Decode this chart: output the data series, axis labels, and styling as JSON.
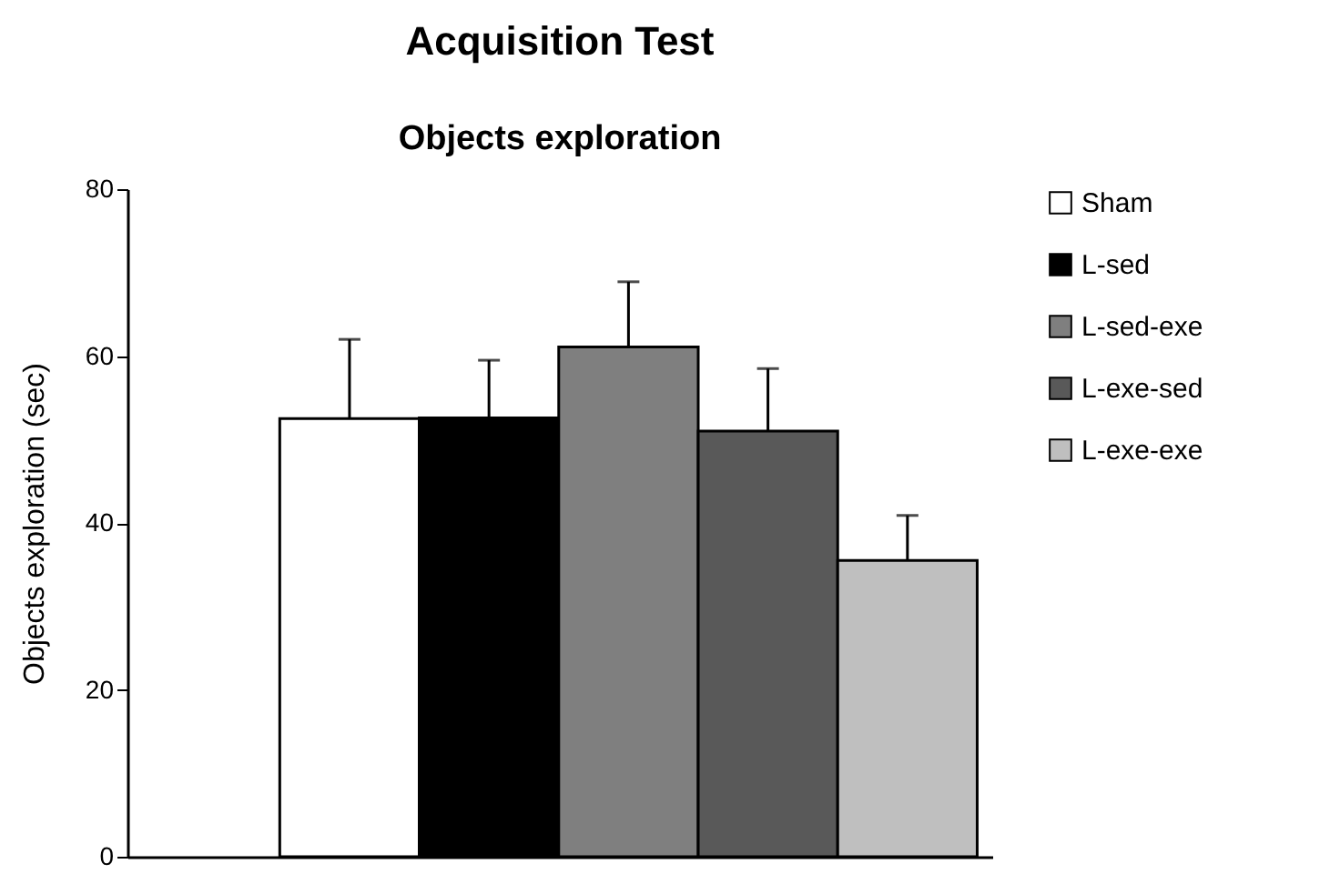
{
  "chart_data": {
    "type": "bar",
    "title": "Acquisition Test",
    "subtitle": "Objects exploration",
    "ylabel": "Objects exploration (sec)",
    "categories": [
      null
    ],
    "series": [
      {
        "name": "Sham",
        "color": "#ffffff",
        "values": [
          52.5
        ],
        "errors": [
          [
            52.5,
            62.0
          ]
        ]
      },
      {
        "name": "L-sed",
        "color": "#000000",
        "values": [
          52.6
        ],
        "errors": [
          [
            52.6,
            59.5
          ]
        ]
      },
      {
        "name": "L-sed-exe",
        "color": "#7f7f7f",
        "values": [
          61.1
        ],
        "errors": [
          [
            61.1,
            68.9
          ]
        ]
      },
      {
        "name": "L-exe-sed",
        "color": "#595959",
        "values": [
          51.0
        ],
        "errors": [
          [
            51.0,
            58.5
          ]
        ]
      },
      {
        "name": "L-exe-exe",
        "color": "#bfbfbf",
        "values": [
          35.5
        ],
        "errors": [
          [
            35.5,
            40.9
          ]
        ]
      }
    ],
    "ylim": [
      0,
      80
    ],
    "yticks": [
      0,
      20,
      40,
      60,
      80
    ],
    "grid": false,
    "legend": "right",
    "tick_labels": "y"
  }
}
